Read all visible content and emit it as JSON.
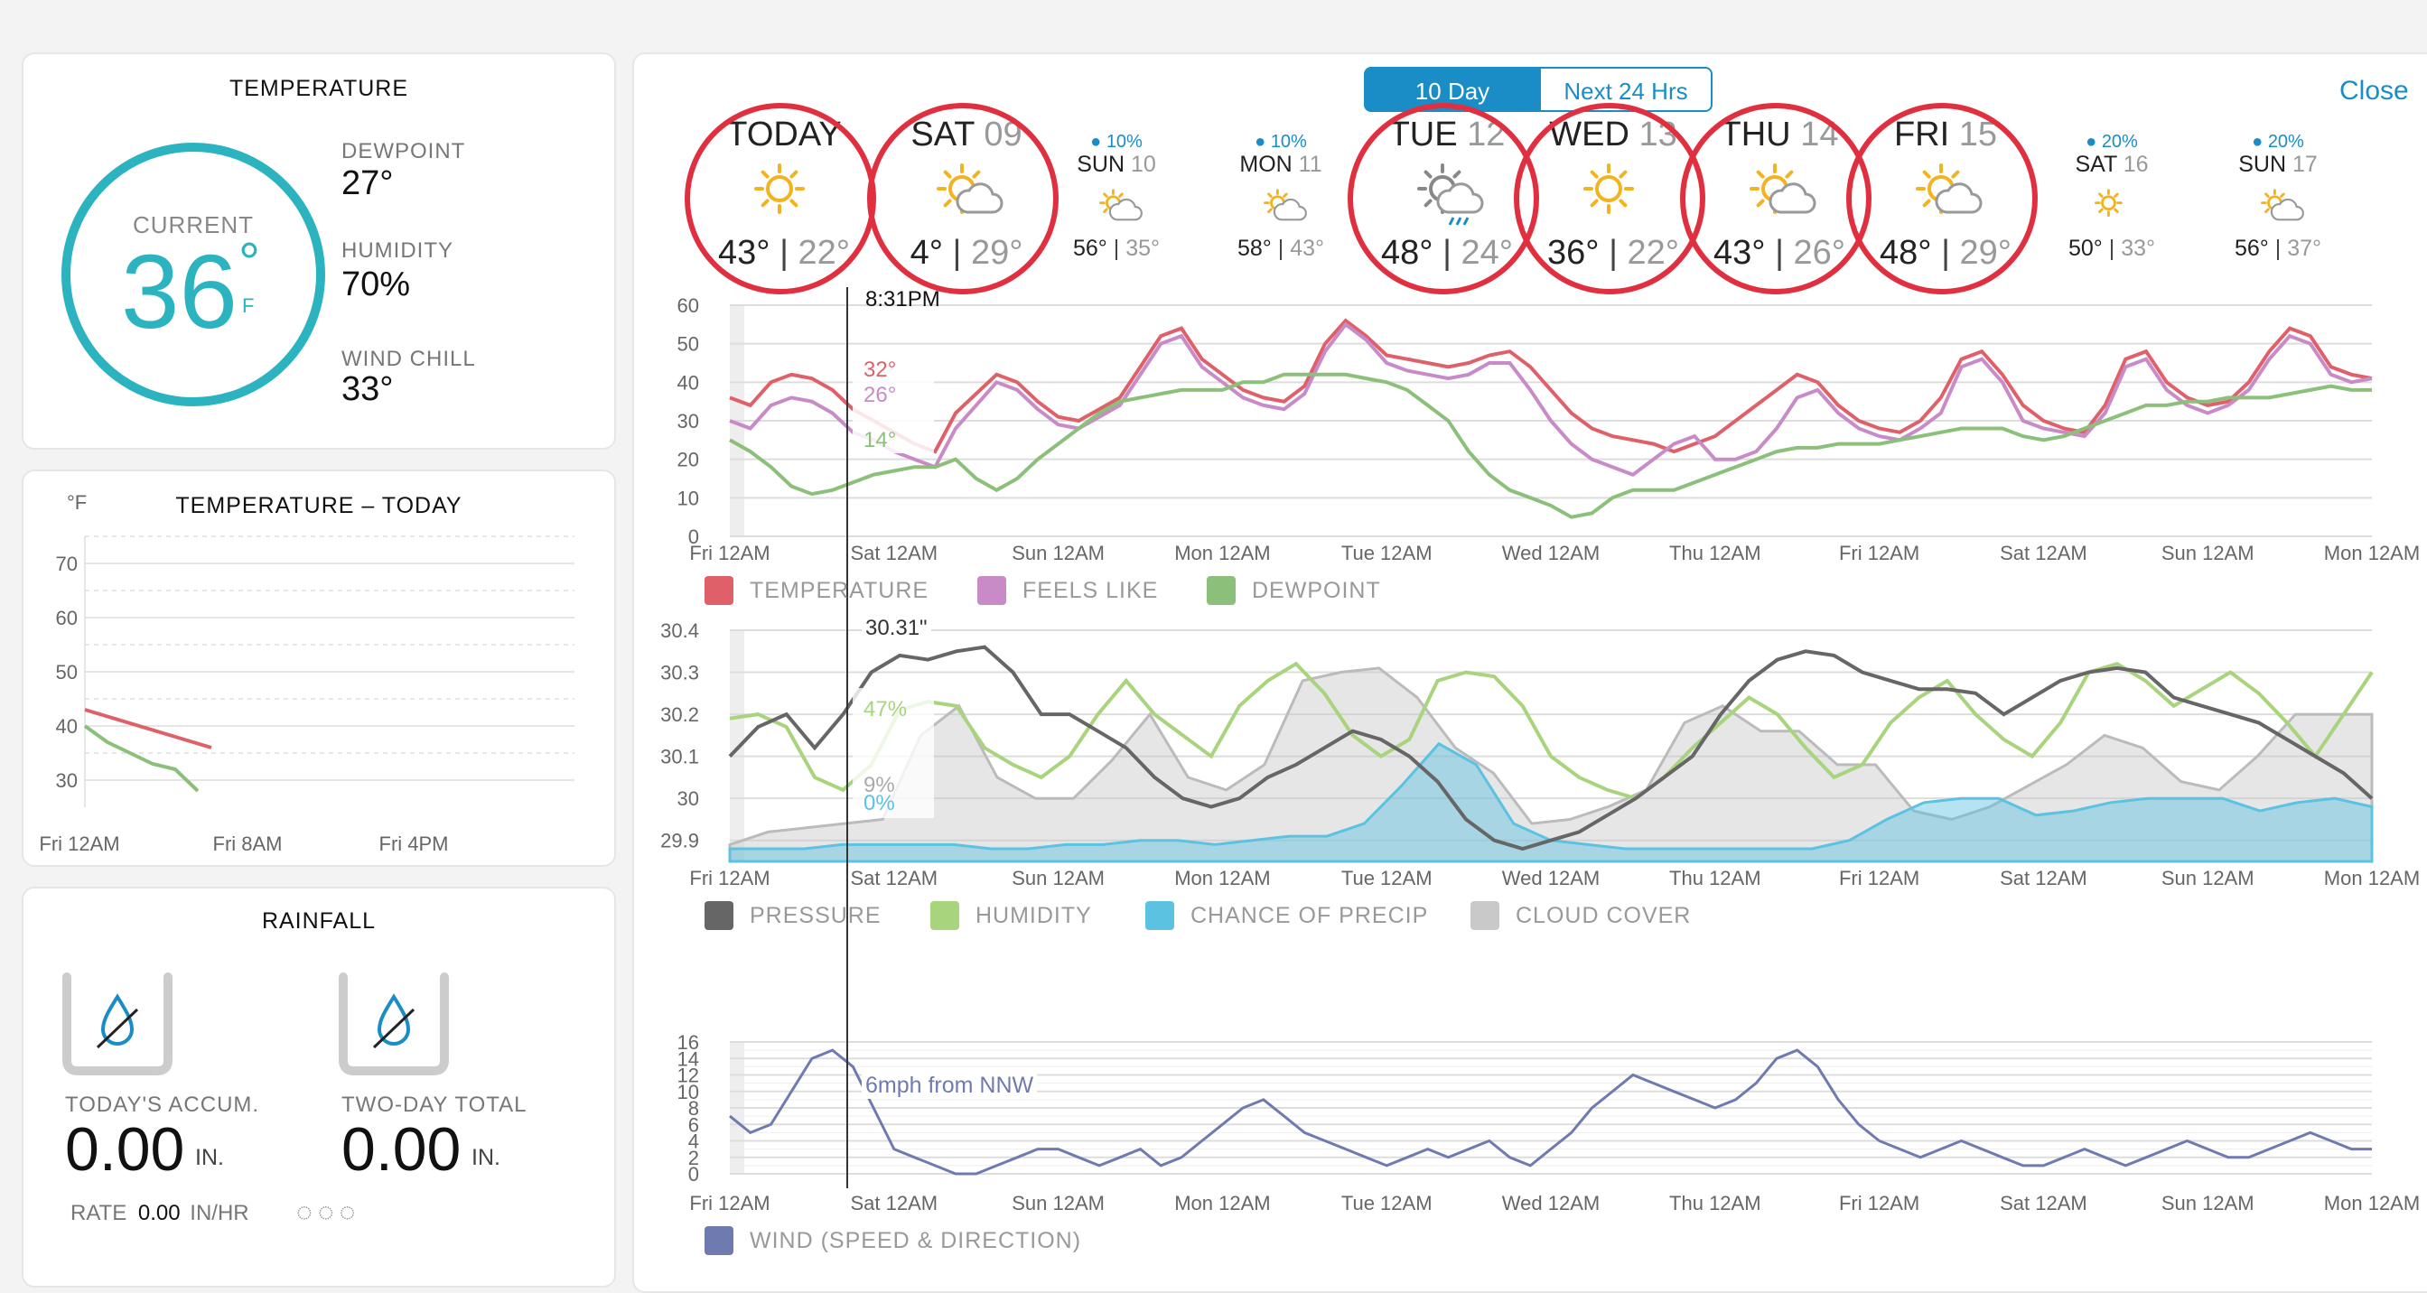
{
  "current": {
    "title": "TEMPERATURE",
    "current_label": "CURRENT",
    "temp": "36",
    "degree": "°",
    "unit": "F",
    "dewpoint_label": "DEWPOINT",
    "dewpoint": "27°",
    "humidity_label": "HUMIDITY",
    "humidity": "70%",
    "windchill_label": "WIND CHILL",
    "windchill": "33°"
  },
  "today_chart": {
    "title": "TEMPERATURE – TODAY",
    "unit": "°F",
    "yticks": [
      "70",
      "60",
      "50",
      "40",
      "30"
    ],
    "xticks": [
      "Fri 12AM",
      "Fri 8AM",
      "Fri 4PM"
    ],
    "temperature": [
      43,
      42,
      41,
      40,
      39,
      38,
      37,
      36
    ],
    "dewpoint": [
      40,
      37,
      35,
      33,
      32,
      28
    ]
  },
  "rainfall": {
    "title": "RAINFALL",
    "today_label": "TODAY'S ACCUM.",
    "today_value": "0.00",
    "today_unit": "IN.",
    "twoday_label": "TWO-DAY TOTAL",
    "twoday_value": "0.00",
    "twoday_unit": "IN.",
    "rate_label": "RATE",
    "rate_value": "0.00",
    "rate_unit": "IN/HR"
  },
  "forecast": {
    "tab_10day": "10 Day",
    "tab_24h": "Next 24 Hrs",
    "close": "Close",
    "days": [
      {
        "name": "TODAY",
        "date": "",
        "hi": "43°",
        "lo": "22°",
        "precip": "",
        "icon": "sun-icon",
        "big": true
      },
      {
        "name": "SAT",
        "date": "09",
        "hi": "4°",
        "lo": "29°",
        "precip": "",
        "icon": "partly-cloudy-icon",
        "big": true
      },
      {
        "name": "SUN",
        "date": "10",
        "hi": "56°",
        "lo": "35°",
        "precip": "10%",
        "icon": "partly-cloudy-icon",
        "big": false
      },
      {
        "name": "MON",
        "date": "11",
        "hi": "58°",
        "lo": "43°",
        "precip": "10%",
        "icon": "partly-cloudy-icon",
        "big": false
      },
      {
        "name": "TUE",
        "date": "12",
        "hi": "48°",
        "lo": "24°",
        "precip": "",
        "icon": "rain-icon",
        "big": true
      },
      {
        "name": "WED",
        "date": "13",
        "hi": "36°",
        "lo": "22°",
        "precip": "",
        "icon": "sun-icon",
        "big": true
      },
      {
        "name": "THU",
        "date": "14",
        "hi": "43°",
        "lo": "26°",
        "precip": "",
        "icon": "partly-cloudy-icon",
        "big": true
      },
      {
        "name": "FRI",
        "date": "15",
        "hi": "48°",
        "lo": "29°",
        "precip": "",
        "icon": "partly-cloudy-icon",
        "big": true
      },
      {
        "name": "SAT",
        "date": "16",
        "hi": "50°",
        "lo": "33°",
        "precip": "20%",
        "icon": "sun-icon",
        "big": false
      },
      {
        "name": "SUN",
        "date": "17",
        "hi": "56°",
        "lo": "37°",
        "precip": "20%",
        "icon": "partly-cloudy-icon",
        "big": false
      }
    ]
  },
  "cursor": {
    "time": "8:31PM",
    "temp": "32°",
    "feels": "26°",
    "dew": "14°",
    "pressure": "30.31\"",
    "humidity": "47%",
    "cloud": "9%",
    "precip": "0%",
    "wind": "6mph from NNW"
  },
  "xticks": [
    "Fri 12AM",
    "Sat 12AM",
    "Sun 12AM",
    "Mon 12AM",
    "Tue 12AM",
    "Wed 12AM",
    "Thu 12AM",
    "Fri 12AM",
    "Sat 12AM",
    "Sun 12AM",
    "Mon 12AM"
  ],
  "legends": {
    "temperature": "TEMPERATURE",
    "feels_like": "FEELS LIKE",
    "dewpoint": "DEWPOINT",
    "pressure": "PRESSURE",
    "humidity": "HUMIDITY",
    "chance_precip": "CHANCE OF PRECIP",
    "cloud_cover": "CLOUD COVER",
    "wind": "WIND (SPEED & DIRECTION)"
  },
  "colors": {
    "temperature": "#e0606a",
    "feels_like": "#c98bc8",
    "dewpoint": "#8cc07a",
    "pressure": "#666666",
    "humidity": "#a8d47e",
    "precip": "#5bc2e2",
    "cloud": "#c9c9c9",
    "wind": "#6f7bb0",
    "accent": "#1a8dc6",
    "circle": "#e03040",
    "current_ring": "#2bb3c0"
  },
  "chart_data": [
    {
      "type": "line",
      "title": "",
      "ylim": [
        0,
        60
      ],
      "yticks": [
        "60",
        "50",
        "40",
        "30",
        "20",
        "10",
        "0"
      ],
      "series": [
        {
          "name": "TEMPERATURE",
          "values": [
            36,
            34,
            40,
            42,
            41,
            38,
            33,
            30,
            27,
            24,
            22,
            32,
            37,
            42,
            40,
            35,
            31,
            30,
            33,
            36,
            44,
            52,
            54,
            46,
            42,
            38,
            36,
            35,
            39,
            50,
            56,
            52,
            47,
            46,
            45,
            44,
            45,
            47,
            48,
            44,
            38,
            32,
            28,
            26,
            25,
            24,
            22,
            24,
            26,
            30,
            34,
            38,
            42,
            40,
            34,
            30,
            28,
            27,
            30,
            36,
            46,
            48,
            42,
            34,
            30,
            28,
            27,
            34,
            46,
            48,
            40,
            36,
            34,
            35,
            40,
            48,
            54,
            52,
            44,
            42,
            41
          ]
        },
        {
          "name": "FEELS LIKE",
          "values": [
            30,
            28,
            34,
            36,
            35,
            32,
            27,
            25,
            22,
            20,
            18,
            28,
            34,
            40,
            38,
            33,
            29,
            28,
            31,
            34,
            42,
            50,
            52,
            44,
            40,
            36,
            34,
            33,
            37,
            48,
            55,
            51,
            45,
            43,
            42,
            41,
            42,
            45,
            45,
            38,
            30,
            24,
            20,
            18,
            16,
            20,
            24,
            26,
            20,
            20,
            22,
            28,
            36,
            38,
            32,
            28,
            26,
            25,
            28,
            32,
            44,
            46,
            40,
            30,
            28,
            27,
            26,
            32,
            44,
            46,
            38,
            34,
            32,
            34,
            38,
            46,
            52,
            50,
            42,
            40,
            41
          ]
        },
        {
          "name": "DEWPOINT",
          "values": [
            25,
            22,
            18,
            13,
            11,
            12,
            14,
            16,
            17,
            18,
            18,
            20,
            15,
            12,
            15,
            20,
            24,
            28,
            32,
            35,
            36,
            37,
            38,
            38,
            38,
            40,
            40,
            42,
            42,
            42,
            42,
            41,
            40,
            38,
            34,
            30,
            22,
            16,
            12,
            10,
            8,
            5,
            6,
            10,
            12,
            12,
            12,
            14,
            16,
            18,
            20,
            22,
            23,
            23,
            24,
            24,
            24,
            25,
            26,
            27,
            28,
            28,
            28,
            26,
            25,
            26,
            28,
            30,
            32,
            34,
            34,
            35,
            35,
            36,
            36,
            36,
            37,
            38,
            39,
            38,
            38
          ]
        }
      ]
    },
    {
      "type": "area",
      "title": "",
      "ylim": [
        29.85,
        30.4
      ],
      "yticks": [
        "30.4",
        "30.3",
        "30.2",
        "30.1",
        "30",
        "29.9"
      ],
      "series": [
        {
          "name": "PRESSURE",
          "values": [
            30.1,
            30.17,
            30.2,
            30.12,
            30.2,
            30.3,
            30.34,
            30.33,
            30.35,
            30.36,
            30.3,
            30.2,
            30.2,
            30.16,
            30.12,
            30.05,
            30.0,
            29.98,
            30.0,
            30.05,
            30.08,
            30.12,
            30.16,
            30.14,
            30.1,
            30.04,
            29.95,
            29.9,
            29.88,
            29.9,
            29.92,
            29.96,
            30.0,
            30.05,
            30.1,
            30.2,
            30.28,
            30.33,
            30.35,
            30.34,
            30.3,
            30.28,
            30.26,
            30.26,
            30.25,
            30.2,
            30.24,
            30.28,
            30.3,
            30.31,
            30.3,
            30.24,
            30.22,
            30.2,
            30.18,
            30.14,
            30.1,
            30.06,
            30.0
          ]
        },
        {
          "name": "HUMIDITY",
          "values": [
            30.19,
            30.2,
            30.17,
            30.05,
            30.02,
            30.08,
            30.21,
            30.23,
            30.22,
            30.12,
            30.08,
            30.05,
            30.1,
            30.2,
            30.28,
            30.2,
            30.15,
            30.1,
            30.22,
            30.28,
            30.32,
            30.25,
            30.15,
            30.1,
            30.14,
            30.28,
            30.3,
            30.29,
            30.22,
            30.1,
            30.05,
            30.02,
            30.0,
            30.05,
            30.12,
            30.18,
            30.24,
            30.2,
            30.12,
            30.05,
            30.08,
            30.18,
            30.24,
            30.28,
            30.2,
            30.14,
            30.1,
            30.18,
            30.3,
            30.32,
            30.28,
            30.22,
            30.26,
            30.3,
            30.25,
            30.18,
            30.1,
            30.2,
            30.3
          ]
        },
        {
          "name": "CHANCE OF PRECIP",
          "values": [
            29.88,
            29.88,
            29.88,
            29.89,
            29.89,
            29.89,
            29.89,
            29.88,
            29.88,
            29.89,
            29.89,
            29.9,
            29.9,
            29.89,
            29.9,
            29.91,
            29.91,
            29.94,
            30.03,
            30.13,
            30.08,
            29.94,
            29.9,
            29.89,
            29.88,
            29.88,
            29.88,
            29.88,
            29.88,
            29.88,
            29.9,
            29.95,
            29.99,
            30.0,
            30.0,
            29.96,
            29.97,
            29.99,
            30.0,
            30.0,
            30.0,
            29.97,
            29.99,
            30.0,
            29.98
          ]
        },
        {
          "name": "CLOUD COVER",
          "values": [
            29.89,
            29.92,
            29.93,
            29.94,
            29.95,
            30.15,
            30.22,
            30.05,
            30.0,
            30.0,
            30.09,
            30.2,
            30.05,
            30.02,
            30.08,
            30.28,
            30.3,
            30.31,
            30.24,
            30.12,
            30.06,
            29.94,
            29.95,
            29.98,
            30.02,
            30.18,
            30.22,
            30.16,
            30.16,
            30.08,
            30.08,
            29.97,
            29.95,
            29.98,
            30.03,
            30.08,
            30.15,
            30.12,
            30.04,
            30.02,
            30.1,
            30.2,
            30.2,
            30.2
          ]
        }
      ]
    },
    {
      "type": "line",
      "title": "",
      "ylim": [
        0,
        16
      ],
      "yticks": [
        "16",
        "14",
        "12",
        "10",
        "8",
        "6",
        "4",
        "2",
        "0"
      ],
      "series": [
        {
          "name": "WIND (SPEED & DIRECTION)",
          "values": [
            7,
            5,
            6,
            10,
            14,
            15,
            13,
            8,
            3,
            2,
            1,
            0,
            0,
            1,
            2,
            3,
            3,
            2,
            1,
            2,
            3,
            1,
            2,
            4,
            6,
            8,
            9,
            7,
            5,
            4,
            3,
            2,
            1,
            2,
            3,
            2,
            3,
            4,
            2,
            1,
            3,
            5,
            8,
            10,
            12,
            11,
            10,
            9,
            8,
            9,
            11,
            14,
            15,
            13,
            9,
            6,
            4,
            3,
            2,
            3,
            4,
            3,
            2,
            1,
            1,
            2,
            3,
            2,
            1,
            2,
            3,
            4,
            3,
            2,
            2,
            3,
            4,
            5,
            4,
            3,
            3
          ]
        }
      ]
    }
  ]
}
